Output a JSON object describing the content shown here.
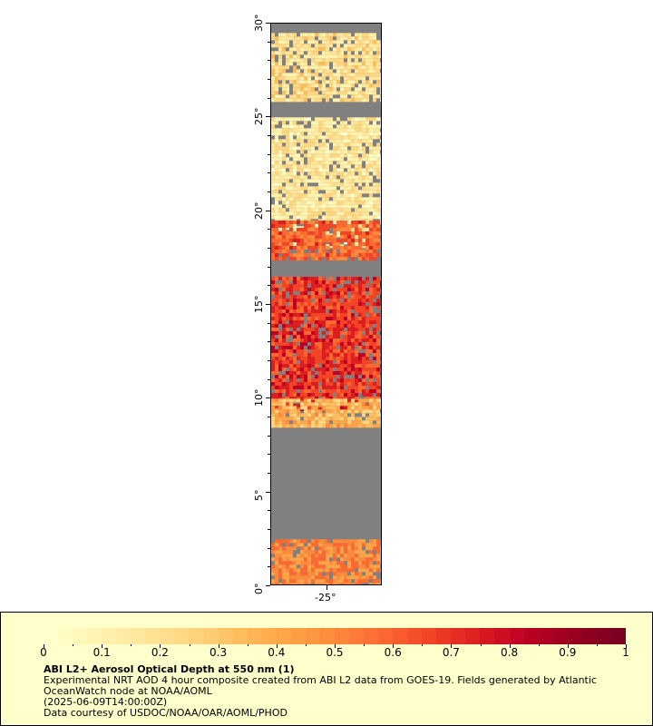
{
  "map": {
    "lat_labels": [
      "0°",
      "5°",
      "10°",
      "15°",
      "20°",
      "25°",
      "30°"
    ],
    "lon_labels": [
      "-25°"
    ],
    "background_color": "#808080",
    "aod_regions": [
      {
        "lat_from": 26.0,
        "lat_to": 29.5,
        "aod": 0.2
      },
      {
        "lat_from": 18.2,
        "lat_to": 25.0,
        "aod": 0.15
      },
      {
        "lat_from": 17.5,
        "lat_to": 19.5,
        "aod": 0.6
      },
      {
        "lat_from": 9.5,
        "lat_to": 16.5,
        "aod": 0.7
      },
      {
        "lat_from": 8.5,
        "lat_to": 10.0,
        "aod": 0.35
      },
      {
        "lat_from": 0.0,
        "lat_to": 2.5,
        "aod": 0.5
      }
    ]
  },
  "legend": {
    "ticks": [
      "0",
      "0.1",
      "0.2",
      "0.3",
      "0.4",
      "0.5",
      "0.6",
      "0.7",
      "0.8",
      "0.9",
      "1"
    ],
    "colors": [
      "#ffffcc",
      "#fff3b0",
      "#ffe699",
      "#fed580",
      "#febd5c",
      "#fea446",
      "#fd8a3c",
      "#fc6a32",
      "#f24427",
      "#dc1e20",
      "#c00023",
      "#99001f",
      "#7a0020"
    ],
    "title": "ABI L2+ Aerosol Optical Depth at 550 nm (1)",
    "line1": "Experimental NRT AOD 4 hour composite created from ABI L2 data from GOES-19. Fields generated by Atlantic",
    "line2": "OceanWatch node at NOAA/AOML",
    "line3": "(2025-06-09T14:00:00Z)",
    "line4": "Data courtesy of USDOC/NOAA/OAR/AOML/PHOD"
  }
}
